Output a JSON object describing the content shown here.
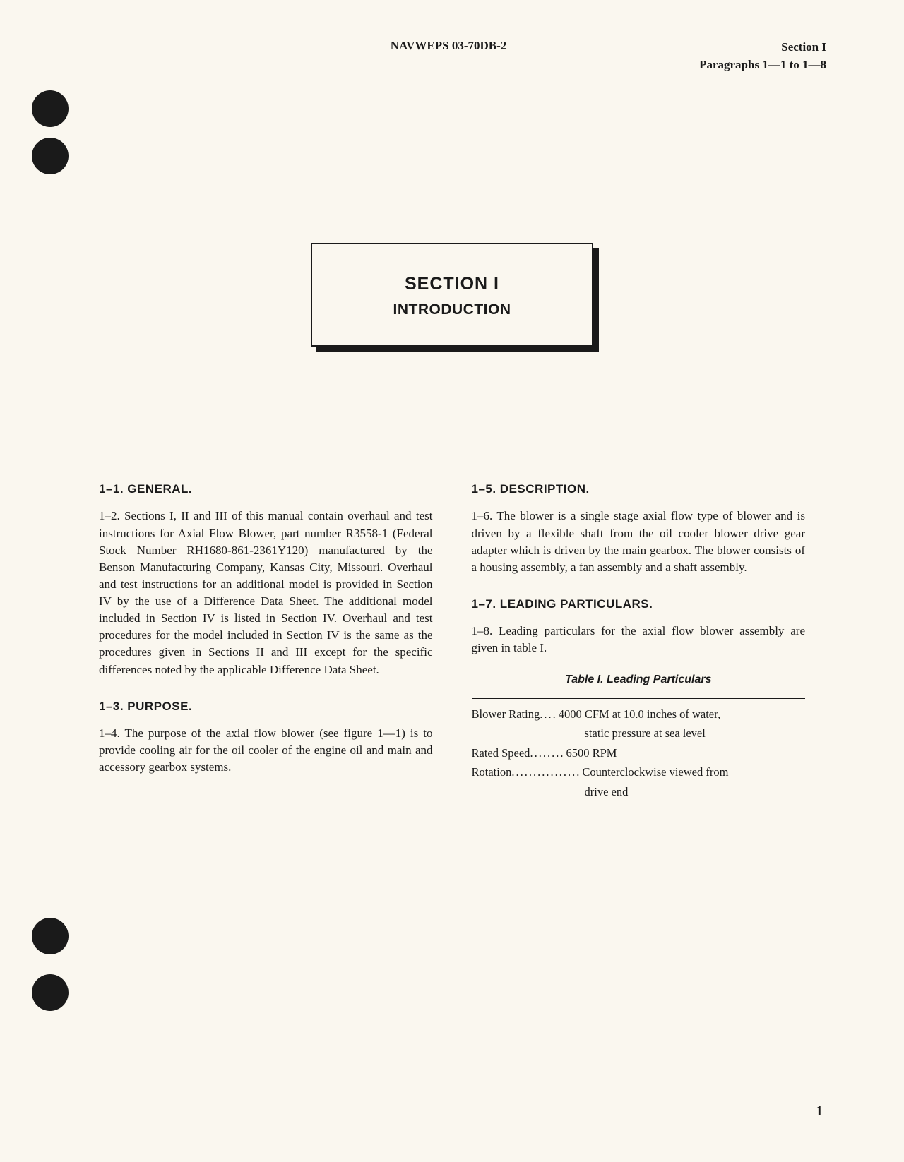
{
  "header": {
    "center": "NAVWEPS 03-70DB-2",
    "right_line1": "Section I",
    "right_line2": "Paragraphs 1—1 to 1—8"
  },
  "title_box": {
    "line1": "SECTION I",
    "line2": "INTRODUCTION"
  },
  "left_column": {
    "heading1": "1–1. GENERAL.",
    "para1": "1–2. Sections I, II and III of this manual contain overhaul and test instructions for Axial Flow Blower, part number R3558-1 (Federal Stock Number RH1680-861-2361Y120) manufactured by the Benson Manufacturing Company, Kansas City, Missouri. Overhaul and test instructions for an additional model is provided in Section IV by the use of a Difference Data Sheet. The additional model included in Section IV is listed in Section IV. Overhaul and test procedures for the model included in Section IV is the same as the procedures given in Sections II and III except for the specific differences noted by the applicable Difference Data Sheet.",
    "heading2": "1–3. PURPOSE.",
    "para2": "1–4. The purpose of the axial flow blower (see figure 1—1) is to provide cooling air for the oil cooler of the engine oil and main and accessory gearbox systems."
  },
  "right_column": {
    "heading1": "1–5. DESCRIPTION.",
    "para1": "1–6. The blower is a single stage axial flow type of blower and is driven by a flexible shaft from the oil cooler blower drive gear adapter which is driven by the main gearbox. The blower consists of a housing assembly, a fan assembly and a shaft assembly.",
    "heading2": "1–7. LEADING PARTICULARS.",
    "para2": "1–8. Leading particulars for the axial flow blower assembly are given in table I.",
    "table_title": "Table I. Leading Particulars",
    "table": {
      "rows": [
        {
          "label": "Blower Rating",
          "dots": " ....",
          "value": "4000 CFM at 10.0 inches of water,",
          "value_cont": "static pressure at sea level"
        },
        {
          "label": "Rated Speed",
          "dots": " ........",
          "value": "6500 RPM",
          "value_cont": ""
        },
        {
          "label": "Rotation",
          "dots": " ................",
          "value": "Counterclockwise viewed from",
          "value_cont": "drive end"
        }
      ]
    }
  },
  "page_number": "1",
  "styling": {
    "page_bg": "#faf7ef",
    "text_color": "#1a1a1a",
    "body_font": "Georgia, 'Times New Roman', serif",
    "heading_font": "Arial, Helvetica, sans-serif"
  }
}
